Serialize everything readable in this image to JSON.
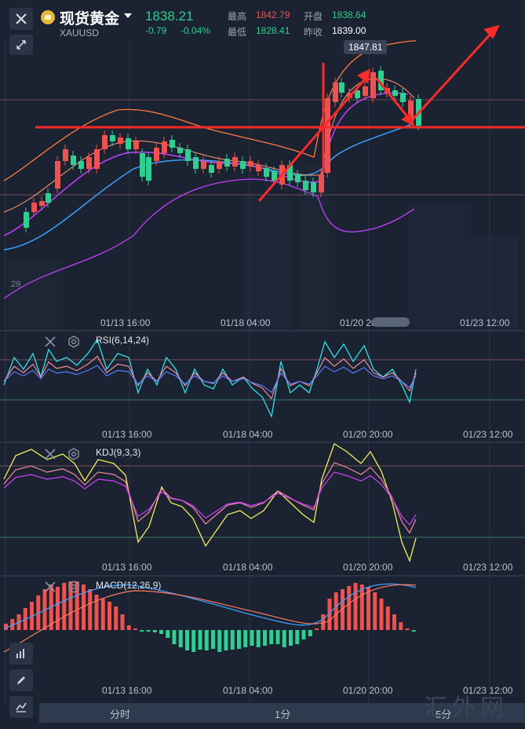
{
  "header": {
    "instrument_name": "现货黄金",
    "instrument_code": "XAUUSD",
    "price": "1838.21",
    "change": "-0.79",
    "change_pct": "-0.04%",
    "high_label": "最高",
    "high_value": "1842.79",
    "open_label": "开盘",
    "open_value": "1838.64",
    "low_label": "最低",
    "low_value": "1828.41",
    "prev_close_label": "昨收",
    "prev_close_value": "1839.00"
  },
  "main_chart": {
    "price_tag": "1847.81",
    "left_axis_label": "29",
    "x_labels": [
      "01/13 16:00",
      "01/18 04:00",
      "01/20 20:00",
      "01/23 12:00"
    ]
  },
  "rsi": {
    "label": "RSI(6,14,24)",
    "x_labels": [
      "01/13 16:00",
      "01/18 04:00",
      "01/20 20:00",
      "01/23 12:00"
    ]
  },
  "kdj": {
    "label": "KDJ(9,3,3)",
    "x_labels": [
      "01/13 16:00",
      "01/18 04:00",
      "01/20 20:00",
      "01/23 12:00"
    ]
  },
  "macd": {
    "label": "MACD(12,26,9)",
    "x_labels": [
      "01/13 16:00",
      "01/18 04:00",
      "01/20 20:00",
      "01/23 12:00"
    ]
  },
  "tabs": [
    "分时",
    "1分",
    "5分"
  ],
  "watermark": "汇外网",
  "colors": {
    "background": "#1b2231",
    "up": "#f0514f",
    "down": "#2fcf91",
    "annotation": "#ff2a2a",
    "ma_blue": "#3aa0ff",
    "ma_purple": "#c040ff",
    "ma_orange": "#ff7a3c",
    "line_yellow": "#f2ef5a",
    "line_cyan": "#2fe0e6"
  },
  "icons": {
    "close": "close-icon",
    "collapse": "collapse-arrows-icon",
    "coin": "gold-coin-icon",
    "indicator_close": "close-icon",
    "indicator_settings": "gear-icon",
    "tool_chart": "chart-tool-icon",
    "tool_draw": "pencil-icon",
    "tool_line": "line-tool-icon"
  }
}
